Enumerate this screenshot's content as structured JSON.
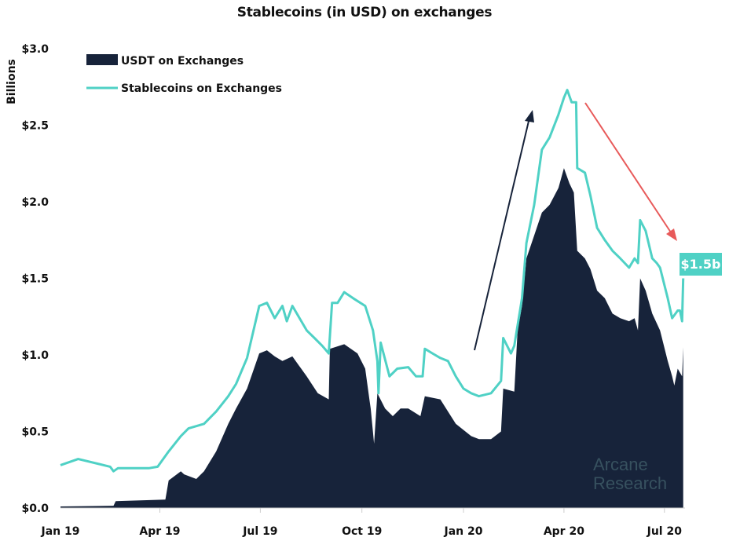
{
  "chart_data": {
    "type": "area",
    "title": "Stablecoins (in USD) on exchanges",
    "xlabel": "",
    "ylabel": "Billions",
    "ylim": [
      0,
      3.0
    ],
    "yticks": [
      "$0.0",
      "$0.5",
      "$1.0",
      "$1.5",
      "$2.0",
      "$2.5",
      "$3.0"
    ],
    "ytick_values": [
      0,
      0.5,
      1.0,
      1.5,
      2.0,
      2.5,
      3.0
    ],
    "xticks": [
      "Jan 19",
      "Apr 19",
      "Jul 19",
      "Oct 19",
      "Jan 20",
      "Apr 20",
      "Jul 20"
    ],
    "xtick_dates": [
      "2019-01-01",
      "2019-04-01",
      "2019-07-01",
      "2019-10-01",
      "2020-01-01",
      "2020-04-01",
      "2020-07-01"
    ],
    "grid": false,
    "legend_position": "top-left",
    "series": [
      {
        "name": "USDT on Exchanges",
        "type": "area",
        "color": "#17233a",
        "points": [
          [
            "2019-01-01",
            0.01
          ],
          [
            "2019-02-18",
            0.015
          ],
          [
            "2019-02-20",
            0.045
          ],
          [
            "2019-04-06",
            0.055
          ],
          [
            "2019-04-09",
            0.18
          ],
          [
            "2019-04-20",
            0.24
          ],
          [
            "2019-04-23",
            0.22
          ],
          [
            "2019-05-04",
            0.19
          ],
          [
            "2019-05-11",
            0.24
          ],
          [
            "2019-05-22",
            0.37
          ],
          [
            "2019-06-02",
            0.55
          ],
          [
            "2019-06-09",
            0.65
          ],
          [
            "2019-06-19",
            0.78
          ],
          [
            "2019-06-30",
            1.01
          ],
          [
            "2019-07-07",
            1.03
          ],
          [
            "2019-07-14",
            0.99
          ],
          [
            "2019-07-21",
            0.96
          ],
          [
            "2019-07-30",
            0.99
          ],
          [
            "2019-08-12",
            0.86
          ],
          [
            "2019-08-22",
            0.75
          ],
          [
            "2019-09-01",
            0.71
          ],
          [
            "2019-09-02",
            1.04
          ],
          [
            "2019-09-15",
            1.07
          ],
          [
            "2019-09-27",
            1.01
          ],
          [
            "2019-10-04",
            0.91
          ],
          [
            "2019-10-08",
            0.7
          ],
          [
            "2019-10-09",
            0.65
          ],
          [
            "2019-10-12",
            0.42
          ],
          [
            "2019-10-15",
            0.75
          ],
          [
            "2019-10-22",
            0.65
          ],
          [
            "2019-10-29",
            0.6
          ],
          [
            "2019-11-05",
            0.65
          ],
          [
            "2019-11-12",
            0.65
          ],
          [
            "2019-11-23",
            0.6
          ],
          [
            "2019-11-27",
            0.73
          ],
          [
            "2019-12-11",
            0.71
          ],
          [
            "2019-12-18",
            0.63
          ],
          [
            "2019-12-25",
            0.55
          ],
          [
            "2020-01-08",
            0.47
          ],
          [
            "2020-01-15",
            0.45
          ],
          [
            "2020-01-26",
            0.45
          ],
          [
            "2020-02-04",
            0.5
          ],
          [
            "2020-02-06",
            0.78
          ],
          [
            "2020-02-16",
            0.76
          ],
          [
            "2020-02-19",
            1.16
          ],
          [
            "2020-02-23",
            1.32
          ],
          [
            "2020-02-27",
            1.63
          ],
          [
            "2020-03-05",
            1.78
          ],
          [
            "2020-03-12",
            1.93
          ],
          [
            "2020-03-19",
            1.98
          ],
          [
            "2020-03-27",
            2.09
          ],
          [
            "2020-04-01",
            2.22
          ],
          [
            "2020-04-06",
            2.12
          ],
          [
            "2020-04-10",
            2.06
          ],
          [
            "2020-04-13",
            1.68
          ],
          [
            "2020-04-20",
            1.63
          ],
          [
            "2020-04-25",
            1.56
          ],
          [
            "2020-05-01",
            1.42
          ],
          [
            "2020-05-08",
            1.37
          ],
          [
            "2020-05-15",
            1.27
          ],
          [
            "2020-05-22",
            1.24
          ],
          [
            "2020-05-30",
            1.22
          ],
          [
            "2020-06-04",
            1.24
          ],
          [
            "2020-06-07",
            1.16
          ],
          [
            "2020-06-09",
            1.5
          ],
          [
            "2020-06-14",
            1.42
          ],
          [
            "2020-06-20",
            1.27
          ],
          [
            "2020-06-27",
            1.16
          ],
          [
            "2020-07-04",
            0.96
          ],
          [
            "2020-07-08",
            0.86
          ],
          [
            "2020-07-10",
            0.8
          ],
          [
            "2020-07-13",
            0.91
          ],
          [
            "2020-07-17",
            0.86
          ],
          [
            "2020-07-18",
            1.05
          ]
        ]
      },
      {
        "name": "Stablecoins on Exchanges",
        "type": "line",
        "color": "#4fd1c5",
        "points": [
          [
            "2019-01-01",
            0.28
          ],
          [
            "2019-01-17",
            0.32
          ],
          [
            "2019-02-15",
            0.27
          ],
          [
            "2019-02-18",
            0.24
          ],
          [
            "2019-02-22",
            0.26
          ],
          [
            "2019-03-22",
            0.26
          ],
          [
            "2019-03-30",
            0.27
          ],
          [
            "2019-04-09",
            0.37
          ],
          [
            "2019-04-20",
            0.47
          ],
          [
            "2019-04-27",
            0.52
          ],
          [
            "2019-05-11",
            0.55
          ],
          [
            "2019-05-22",
            0.63
          ],
          [
            "2019-06-02",
            0.73
          ],
          [
            "2019-06-09",
            0.81
          ],
          [
            "2019-06-19",
            0.98
          ],
          [
            "2019-06-30",
            1.32
          ],
          [
            "2019-07-07",
            1.34
          ],
          [
            "2019-07-14",
            1.24
          ],
          [
            "2019-07-21",
            1.32
          ],
          [
            "2019-07-25",
            1.22
          ],
          [
            "2019-07-30",
            1.32
          ],
          [
            "2019-08-12",
            1.16
          ],
          [
            "2019-08-19",
            1.11
          ],
          [
            "2019-08-26",
            1.06
          ],
          [
            "2019-09-01",
            1.01
          ],
          [
            "2019-09-04",
            1.34
          ],
          [
            "2019-09-09",
            1.34
          ],
          [
            "2019-09-15",
            1.41
          ],
          [
            "2019-09-23",
            1.37
          ],
          [
            "2019-10-04",
            1.32
          ],
          [
            "2019-10-11",
            1.16
          ],
          [
            "2019-10-15",
            0.96
          ],
          [
            "2019-10-16",
            0.75
          ],
          [
            "2019-10-18",
            1.08
          ],
          [
            "2019-10-26",
            0.86
          ],
          [
            "2019-11-02",
            0.91
          ],
          [
            "2019-11-12",
            0.92
          ],
          [
            "2019-11-19",
            0.86
          ],
          [
            "2019-11-25",
            0.86
          ],
          [
            "2019-11-27",
            1.04
          ],
          [
            "2019-12-04",
            1.01
          ],
          [
            "2019-12-11",
            0.98
          ],
          [
            "2019-12-18",
            0.96
          ],
          [
            "2019-12-25",
            0.86
          ],
          [
            "2020-01-01",
            0.78
          ],
          [
            "2020-01-08",
            0.75
          ],
          [
            "2020-01-15",
            0.73
          ],
          [
            "2020-01-26",
            0.75
          ],
          [
            "2020-02-04",
            0.83
          ],
          [
            "2020-02-06",
            1.11
          ],
          [
            "2020-02-13",
            1.01
          ],
          [
            "2020-02-16",
            1.06
          ],
          [
            "2020-02-23",
            1.37
          ],
          [
            "2020-02-27",
            1.73
          ],
          [
            "2020-03-05",
            1.98
          ],
          [
            "2020-03-12",
            2.34
          ],
          [
            "2020-03-19",
            2.42
          ],
          [
            "2020-03-27",
            2.57
          ],
          [
            "2020-04-01",
            2.68
          ],
          [
            "2020-04-04",
            2.73
          ],
          [
            "2020-04-08",
            2.65
          ],
          [
            "2020-04-12",
            2.65
          ],
          [
            "2020-04-13",
            2.22
          ],
          [
            "2020-04-20",
            2.19
          ],
          [
            "2020-04-25",
            2.04
          ],
          [
            "2020-05-01",
            1.83
          ],
          [
            "2020-05-08",
            1.75
          ],
          [
            "2020-05-15",
            1.68
          ],
          [
            "2020-05-22",
            1.63
          ],
          [
            "2020-05-30",
            1.57
          ],
          [
            "2020-06-04",
            1.63
          ],
          [
            "2020-06-07",
            1.6
          ],
          [
            "2020-06-09",
            1.88
          ],
          [
            "2020-06-14",
            1.81
          ],
          [
            "2020-06-20",
            1.63
          ],
          [
            "2020-06-24",
            1.6
          ],
          [
            "2020-06-27",
            1.57
          ],
          [
            "2020-07-04",
            1.37
          ],
          [
            "2020-07-08",
            1.24
          ],
          [
            "2020-07-11",
            1.27
          ],
          [
            "2020-07-13",
            1.29
          ],
          [
            "2020-07-15",
            1.29
          ],
          [
            "2020-07-17",
            1.22
          ],
          [
            "2020-07-18",
            1.5
          ]
        ]
      }
    ],
    "annotations": {
      "latest_label": "$1.5b",
      "latest_label_color": "#4fd1c5",
      "up_arrow_color": "#17233a",
      "down_arrow_color": "#e85a5a"
    }
  },
  "watermark": {
    "line1": "Arcane",
    "line2": "Research"
  }
}
